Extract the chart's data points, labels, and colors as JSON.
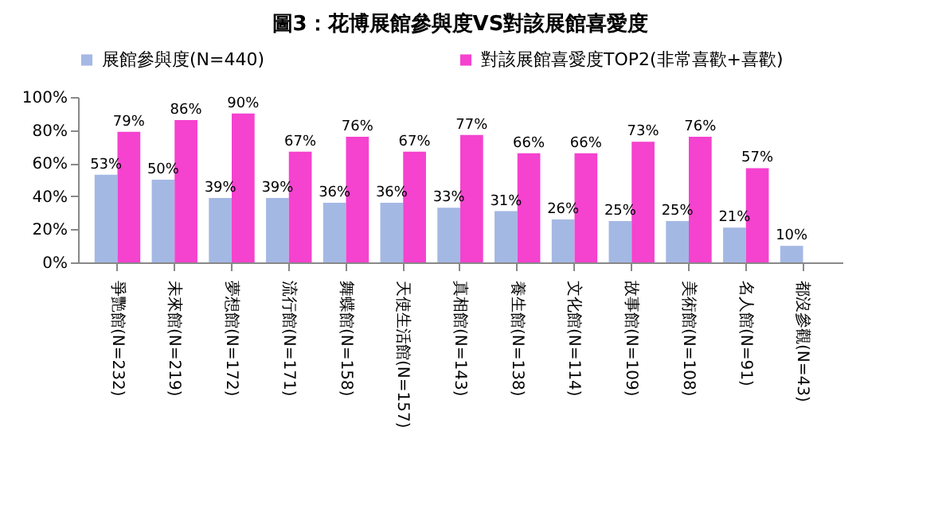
{
  "chart_data": {
    "type": "bar",
    "title": "圖3：花博展館參與度VS對該展館喜愛度",
    "categories": [
      "爭艷館(N=232)",
      "未來館(N=219)",
      "夢想館(N=172)",
      "流行館(N=171)",
      "舞蝶館(N=158)",
      "天使生活館(N=157)",
      "真相館(N=143)",
      "養生館(N=138)",
      "文化館(N=114)",
      "故事館(N=109)",
      "美術館(N=108)",
      "名人館(N=91)",
      "都沒參觀(N=43)"
    ],
    "series": [
      {
        "name": "展館參與度(N=440)",
        "color": "#a4b8e4",
        "values": [
          53,
          50,
          39,
          39,
          36,
          36,
          33,
          31,
          26,
          25,
          25,
          21,
          10
        ],
        "value_labels": [
          "53%",
          "50%",
          "39%",
          "39%",
          "36%",
          "36%",
          "33%",
          "31%",
          "26%",
          "25%",
          "25%",
          "21%",
          "10%"
        ]
      },
      {
        "name": "對該展館喜愛度TOP2(非常喜歡+喜歡)",
        "color": "#f542cf",
        "values": [
          79,
          86,
          90,
          67,
          76,
          67,
          77,
          66,
          66,
          73,
          76,
          57,
          null
        ],
        "value_labels": [
          "79%",
          "86%",
          "90%",
          "67%",
          "76%",
          "67%",
          "77%",
          "66%",
          "66%",
          "73%",
          "76%",
          "57%",
          null
        ]
      }
    ],
    "ylim": [
      0,
      100
    ],
    "yticks": [
      {
        "value": 0,
        "label": "0%"
      },
      {
        "value": 20,
        "label": "20%"
      },
      {
        "value": 40,
        "label": "40%"
      },
      {
        "value": 60,
        "label": "60%"
      },
      {
        "value": 80,
        "label": "80%"
      },
      {
        "value": 100,
        "label": "100%"
      }
    ],
    "grid": false,
    "legend": "top"
  }
}
